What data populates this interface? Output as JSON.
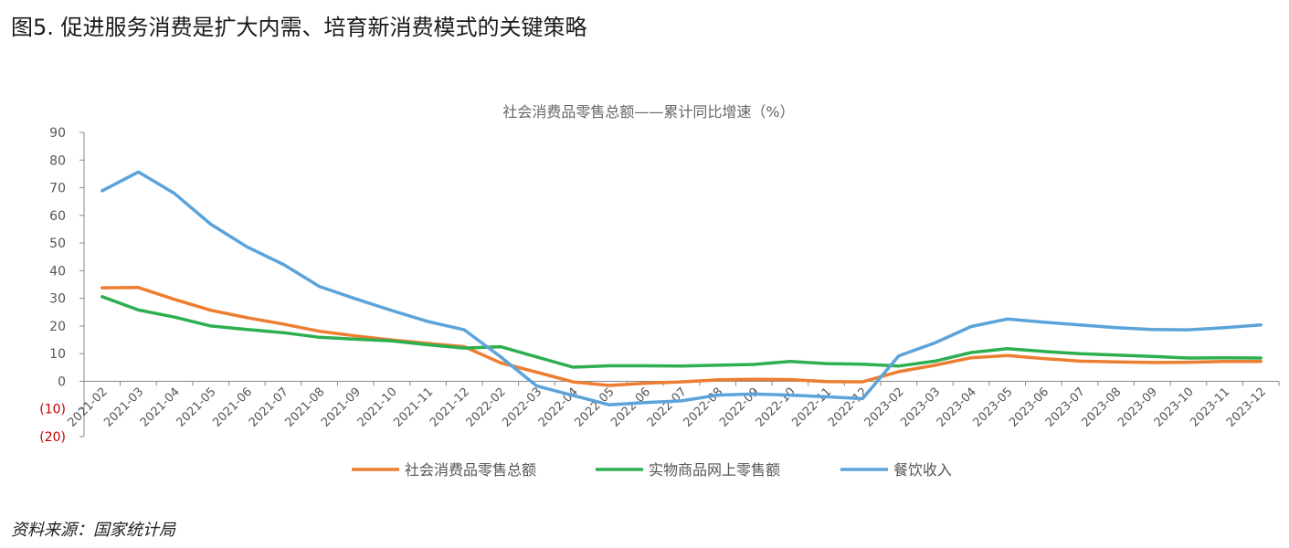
{
  "figure": {
    "title": "图5. 促进服务消费是扩大内需、培育新消费模式的关键策略",
    "source": "资料来源：国家统计局"
  },
  "chart_data": {
    "type": "line",
    "title": "社会消费品零售总额——累计同比增速（%）",
    "xlabel": "",
    "ylabel": "",
    "ylim": [
      -20,
      90
    ],
    "yticks": [
      90,
      80,
      70,
      60,
      50,
      40,
      30,
      20,
      10,
      0,
      -10,
      -20
    ],
    "ytick_labels": [
      "90",
      "80",
      "70",
      "60",
      "50",
      "40",
      "30",
      "20",
      "10",
      "0",
      "(10)",
      "(20)"
    ],
    "negative_tick_color": "#c00000",
    "grid": false,
    "legend_position": "bottom",
    "categories": [
      "2021-02",
      "2021-03",
      "2021-04",
      "2021-05",
      "2021-06",
      "2021-07",
      "2021-08",
      "2021-09",
      "2021-10",
      "2021-11",
      "2021-12",
      "2022-02",
      "2022-03",
      "2022-04",
      "2022-05",
      "2022-06",
      "2022-07",
      "2022-08",
      "2022-09",
      "2022-10",
      "2022-11",
      "2022-12",
      "2023-02",
      "2023-03",
      "2023-04",
      "2023-05",
      "2023-06",
      "2023-07",
      "2023-08",
      "2023-09",
      "2023-10",
      "2023-11",
      "2023-12"
    ],
    "series": [
      {
        "name": "社会消费品零售总额",
        "color": "#ED7D31",
        "values": [
          33.8,
          33.9,
          29.6,
          25.7,
          23.0,
          20.7,
          18.1,
          16.4,
          14.9,
          13.7,
          12.5,
          6.7,
          3.3,
          -0.2,
          -1.5,
          -0.7,
          -0.2,
          0.5,
          0.7,
          0.6,
          -0.1,
          -0.2,
          3.5,
          5.8,
          8.5,
          9.3,
          8.2,
          7.3,
          7.0,
          6.8,
          6.9,
          7.2,
          7.2
        ]
      },
      {
        "name": "实物商品网上零售额",
        "color": "#2EAF4F",
        "values": [
          30.6,
          25.8,
          23.2,
          20.0,
          18.7,
          17.6,
          15.9,
          15.2,
          14.6,
          13.2,
          12.0,
          12.5,
          8.8,
          5.1,
          5.6,
          5.6,
          5.5,
          5.8,
          6.1,
          7.2,
          6.4,
          6.2,
          5.5,
          7.3,
          10.4,
          11.8,
          10.8,
          10.0,
          9.5,
          9.0,
          8.4,
          8.5,
          8.4
        ]
      },
      {
        "name": "餐饮收入",
        "color": "#5BA3D9",
        "values": [
          68.9,
          75.7,
          67.9,
          56.8,
          48.6,
          42.3,
          34.3,
          29.8,
          25.6,
          21.6,
          18.6,
          8.9,
          -1.7,
          -5.1,
          -8.5,
          -7.7,
          -7.1,
          -5.0,
          -4.6,
          -5.0,
          -5.6,
          -6.3,
          9.2,
          13.9,
          19.8,
          22.5,
          21.4,
          20.4,
          19.4,
          18.7,
          18.6,
          19.4,
          20.4
        ]
      }
    ]
  }
}
